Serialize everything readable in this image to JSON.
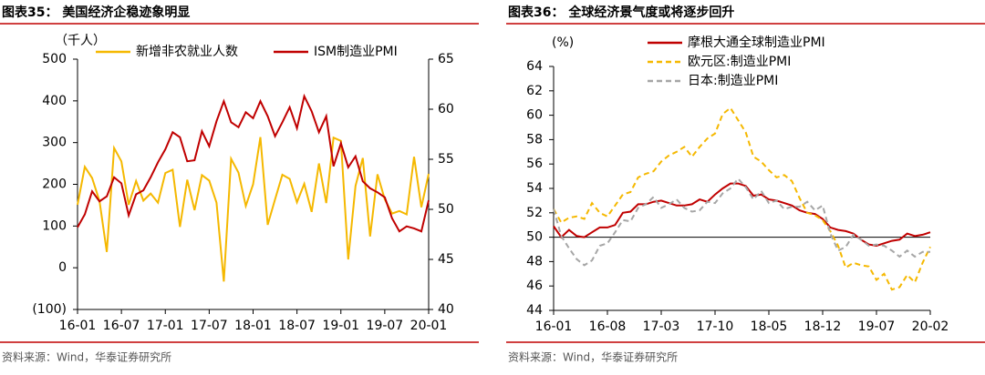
{
  "chart_data": [
    {
      "type": "line",
      "title": "图表35：  美国经济企稳迹象明显",
      "source": "资料来源：Wind，华泰证券研究所",
      "ylabel": "（千人）",
      "legend": "top",
      "categories": [
        "16-01",
        null,
        null,
        null,
        null,
        null,
        "16-07",
        null,
        null,
        null,
        null,
        null,
        "17-01",
        null,
        null,
        null,
        null,
        null,
        "17-07",
        null,
        null,
        null,
        null,
        null,
        "18-01",
        null,
        null,
        null,
        null,
        null,
        "18-07",
        null,
        null,
        null,
        null,
        null,
        "19-01",
        null,
        null,
        null,
        null,
        null,
        "19-07",
        null,
        null,
        null,
        null,
        null,
        "20-01"
      ],
      "ylim": [
        -100,
        500
      ],
      "yticks": [
        {
          "value": -100,
          "label": "(100)"
        },
        0,
        100,
        200,
        300,
        400,
        500
      ],
      "y2lim": [
        40,
        65
      ],
      "y2ticks": [
        40,
        45,
        50,
        55,
        60,
        65
      ],
      "series": [
        {
          "name": "新增非农就业人数",
          "color": "#f5b800",
          "values": [
            151,
            242,
            215,
            160,
            38,
            287,
            255,
            151,
            208,
            161,
            178,
            156,
            227,
            235,
            98,
            211,
            138,
            222,
            209,
            156,
            -33,
            261,
            228,
            148,
            200,
            313,
            103,
            164,
            223,
            213,
            157,
            201,
            134,
            250,
            155,
            312,
            304,
            20,
            196,
            263,
            75,
            224,
            164,
            130,
            136,
            128,
            266,
            145,
            225
          ]
        },
        {
          "name": "ISM制造业PMI",
          "color": "#c00000",
          "axis": "y2",
          "values": [
            48.2,
            49.5,
            51.8,
            50.8,
            51.3,
            53.2,
            52.6,
            49.4,
            51.5,
            51.9,
            53.2,
            54.7,
            56.0,
            57.7,
            57.2,
            54.8,
            54.9,
            57.8,
            56.3,
            58.8,
            60.8,
            58.7,
            58.2,
            59.7,
            59.1,
            60.8,
            59.3,
            57.3,
            58.7,
            60.2,
            58.1,
            61.3,
            59.8,
            57.7,
            59.3,
            54.3,
            56.6,
            54.2,
            55.3,
            52.8,
            52.1,
            51.7,
            51.2,
            49.1,
            47.8,
            48.3,
            48.1,
            47.8,
            50.9
          ]
        }
      ]
    },
    {
      "type": "line",
      "title": "图表36：  全球经济景气度或将逐步回升",
      "source": "资料来源：Wind，华泰证券研究所",
      "ylabel": "(%)",
      "legend": "top",
      "reference_line": 50,
      "categories": [
        "16-01",
        null,
        null,
        null,
        null,
        null,
        null,
        "16-08",
        null,
        null,
        null,
        null,
        null,
        null,
        "17-03",
        null,
        null,
        null,
        null,
        null,
        null,
        "17-10",
        null,
        null,
        null,
        null,
        null,
        null,
        "18-05",
        null,
        null,
        null,
        null,
        null,
        null,
        "18-12",
        null,
        null,
        null,
        null,
        null,
        null,
        "19-07",
        null,
        null,
        null,
        null,
        null,
        null,
        "20-02"
      ],
      "ylim": [
        44,
        64
      ],
      "yticks": [
        44,
        46,
        48,
        50,
        52,
        54,
        56,
        58,
        60,
        62,
        64
      ],
      "series": [
        {
          "name": "摩根大通全球制造业PMI",
          "color": "#c00000",
          "linestyle": "solid",
          "values": [
            50.9,
            50.0,
            50.6,
            50.1,
            50.0,
            50.4,
            50.8,
            50.8,
            51.0,
            52.0,
            52.1,
            52.7,
            52.7,
            52.9,
            53.0,
            52.8,
            52.6,
            52.6,
            52.7,
            53.1,
            52.9,
            53.5,
            54.0,
            54.4,
            54.4,
            54.2,
            53.4,
            53.5,
            53.1,
            53.0,
            52.8,
            52.6,
            52.2,
            52.0,
            51.9,
            51.5,
            50.8,
            50.6,
            50.5,
            50.3,
            49.8,
            49.4,
            49.3,
            49.5,
            49.7,
            49.8,
            50.3,
            50.1,
            50.2,
            50.4
          ]
        },
        {
          "name": "欧元区:制造业PMI",
          "color": "#f5b800",
          "linestyle": "dashed",
          "values": [
            52.3,
            51.2,
            51.6,
            51.7,
            51.5,
            52.8,
            52.0,
            51.7,
            52.6,
            53.5,
            53.7,
            54.9,
            55.2,
            55.4,
            56.2,
            56.7,
            57.0,
            57.4,
            56.6,
            57.4,
            58.1,
            58.5,
            60.1,
            60.6,
            59.6,
            58.6,
            56.6,
            56.2,
            55.5,
            54.9,
            55.1,
            54.6,
            53.2,
            52.0,
            51.8,
            51.4,
            50.5,
            49.3,
            47.5,
            47.9,
            47.7,
            47.6,
            46.5,
            47.0,
            45.7,
            45.9,
            46.9,
            46.3,
            47.9,
            49.2
          ]
        },
        {
          "name": "日本:制造业PMI",
          "color": "#a6a6a6",
          "linestyle": "dashed",
          "values": [
            52.3,
            50.1,
            49.1,
            48.2,
            47.7,
            48.1,
            49.3,
            49.5,
            50.4,
            51.4,
            51.3,
            52.4,
            52.7,
            53.3,
            52.4,
            52.7,
            53.1,
            52.4,
            52.1,
            52.2,
            52.9,
            52.8,
            53.6,
            54.0,
            54.8,
            54.1,
            53.1,
            53.8,
            52.8,
            53.0,
            52.3,
            52.5,
            52.5,
            52.9,
            52.2,
            52.6,
            50.3,
            48.9,
            49.2,
            50.2,
            49.8,
            49.3,
            49.4,
            49.3,
            48.9,
            48.4,
            48.9,
            48.4,
            48.8,
            48.8
          ]
        }
      ]
    }
  ]
}
